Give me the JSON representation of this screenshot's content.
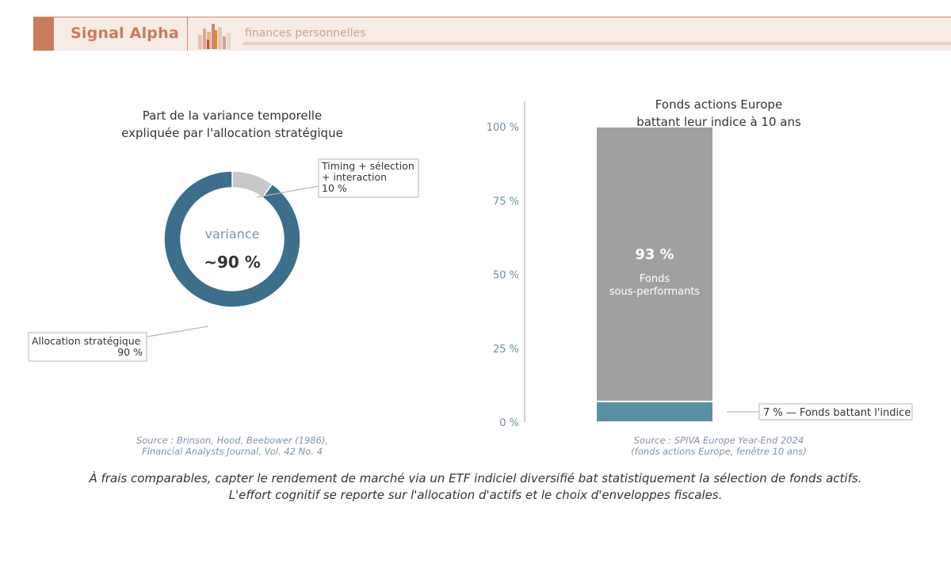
{
  "header": {
    "brand": "Signal Alpha",
    "subtitle": "finances personnelles"
  },
  "chart_data": [
    {
      "type": "pie",
      "title_line1": "Part de la variance temporelle",
      "title_line2": "expliquée par l'allocation stratégique",
      "center_label": "variance",
      "center_value": "~90 %",
      "slices": [
        {
          "name": "Timing + sélection + interaction",
          "label_lines": [
            "Timing + sélection",
            "+ interaction",
            "10 %"
          ],
          "value": 10,
          "color": "#c8c8c8"
        },
        {
          "name": "Allocation stratégique",
          "label_lines": [
            "Allocation stratégique",
            "90 %"
          ],
          "value": 90,
          "color": "#3d6e8c"
        }
      ],
      "source_line1": "Source : Brinson, Hood, Beebower (1986),",
      "source_line2": "Financial Analysts Journal, Vol. 42 No. 4"
    },
    {
      "type": "bar",
      "stacked": true,
      "title_line1": "Fonds actions Europe",
      "title_line2": "battant leur indice à 10 ans",
      "ylim": [
        0,
        100
      ],
      "y_ticks": [
        0,
        25,
        50,
        75,
        100
      ],
      "y_tick_labels": [
        "0 %",
        "25 %",
        "50 %",
        "75 %",
        "100 %"
      ],
      "segments": [
        {
          "name": "Fonds battant l'indice",
          "value": 7,
          "color": "#5b8fa3",
          "label": "7 % — Fonds battant l'indice"
        },
        {
          "name": "Fonds sous-performants",
          "value": 93,
          "color": "#a0a0a0",
          "value_label": "93 %",
          "label_lines": [
            "Fonds",
            "sous-performants"
          ]
        }
      ],
      "source_line1": "Source : SPIVA Europe Year-End 2024",
      "source_line2": "(fonds actions Europe, fenêtre 10 ans)"
    }
  ],
  "footnote": {
    "line1": "À frais comparables, capter le rendement de marché via un ETF indiciel diversifié bat statistiquement la sélection de fonds actifs.",
    "line2": "L'effort cognitif se reporte sur l'allocation d'actifs et le choix d'enveloppes fiscales."
  },
  "colors": {
    "brand": "#c97c5c",
    "banner_bg": "#f6ebe5",
    "source_text": "#7e95a6",
    "axis_label": "#6f8ea2"
  }
}
